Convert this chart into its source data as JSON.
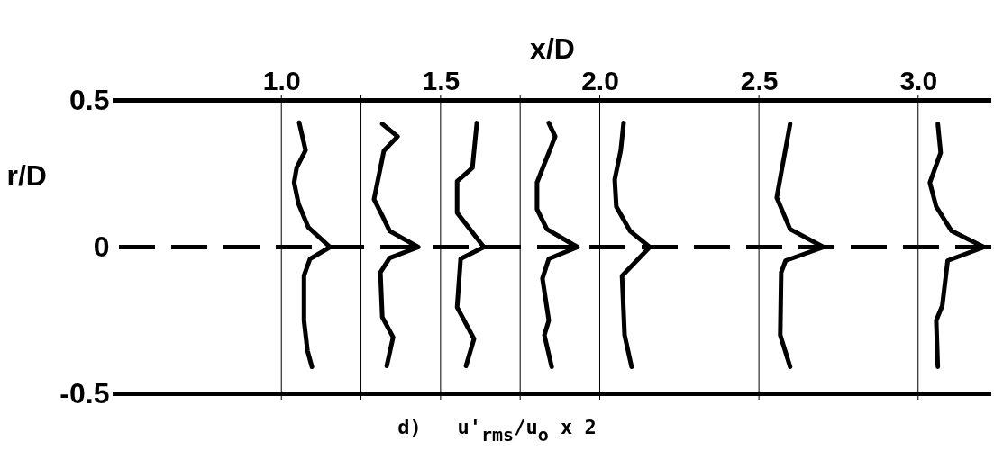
{
  "chart_data": {
    "type": "line",
    "xlabel": "x/D",
    "ylabel": "r/D",
    "annotations": [
      "d)  u'$_{rms}$/u$_{o}$ x 2"
    ],
    "xlim": [
      0.47,
      3.23
    ],
    "ylim": [
      -0.52,
      0.52
    ],
    "xticks": [
      {
        "value": 1,
        "label": "1.0"
      },
      1.5,
      {
        "value": 2,
        "label": "2.0"
      },
      2.5,
      {
        "value": 3,
        "label": "3.0"
      }
    ],
    "yticks": [
      0.5,
      0,
      -0.5
    ],
    "grid": false,
    "legend": false,
    "marker": "none",
    "ref_lines": [
      {
        "axis": "y",
        "value": 0.5,
        "line_style": "solid"
      },
      {
        "axis": "y",
        "value": -0.5,
        "line_style": "solid"
      },
      {
        "axis": "y",
        "value": 0,
        "line_style": "dashed"
      },
      {
        "axis": "x",
        "value": 1.0,
        "line_style": "solid"
      },
      {
        "axis": "x",
        "value": 1.25,
        "line_style": "solid"
      },
      {
        "axis": "x",
        "value": 1.5,
        "line_style": "solid"
      },
      {
        "axis": "x",
        "value": 1.75,
        "line_style": "solid"
      },
      {
        "axis": "x",
        "value": 2.0,
        "line_style": "solid"
      },
      {
        "axis": "x",
        "value": 2.5,
        "line_style": "solid"
      },
      {
        "axis": "x",
        "value": 3.0,
        "line_style": "solid"
      }
    ],
    "series": [
      {
        "color": "#000000",
        "x": [
          1.056,
          1.076,
          1.048,
          1.04,
          1.054,
          1.085,
          1.153,
          1.09,
          1.071,
          1.071,
          1.082,
          1.096
        ],
        "values": [
          0.424,
          0.33,
          0.27,
          0.22,
          0.147,
          0.067,
          0,
          -0.04,
          -0.098,
          -0.25,
          -0.353,
          -0.408
        ]
      },
      {
        "color": "#000000",
        "x": [
          1.317,
          1.365,
          1.322,
          1.291,
          1.317,
          1.34,
          1.43,
          1.34,
          1.311,
          1.317,
          1.351,
          1.331
        ],
        "values": [
          0.42,
          0.377,
          0.328,
          0.163,
          0.107,
          0.055,
          0,
          -0.037,
          -0.086,
          -0.239,
          -0.307,
          -0.405
        ]
      },
      {
        "color": "#000000",
        "x": [
          1.614,
          1.6,
          1.552,
          1.552,
          1.636,
          1.563,
          1.552,
          1.605,
          1.58
        ],
        "values": [
          0.423,
          0.27,
          0.224,
          0.117,
          0,
          -0.04,
          -0.205,
          -0.313,
          -0.405
        ]
      },
      {
        "color": "#000000",
        "x": [
          1.84,
          1.86,
          1.803,
          1.803,
          1.834,
          1.93,
          1.84,
          1.82,
          1.84,
          1.826,
          1.849
        ],
        "values": [
          0.423,
          0.377,
          0.22,
          0.129,
          0.061,
          0,
          -0.04,
          -0.107,
          -0.25,
          -0.3,
          -0.408
        ]
      },
      {
        "color": "#000000",
        "x": [
          2.075,
          2.066,
          2.047,
          2.052,
          2.095,
          2.157,
          2.07,
          2.078,
          2.1
        ],
        "values": [
          0.423,
          0.33,
          0.23,
          0.138,
          0.055,
          0,
          -0.098,
          -0.3,
          -0.408
        ]
      },
      {
        "color": "#000000",
        "x": [
          2.598,
          2.556,
          2.598,
          2.703,
          2.584,
          2.57,
          2.567,
          2.598
        ],
        "values": [
          0.42,
          0.169,
          0.061,
          0,
          -0.046,
          -0.086,
          -0.3,
          -0.408
        ]
      },
      {
        "color": "#000000",
        "x": [
          3.062,
          3.071,
          3.037,
          3.057,
          3.105,
          3.207,
          3.093,
          3.076,
          3.057,
          3.062
        ],
        "values": [
          0.42,
          0.322,
          0.22,
          0.138,
          0.055,
          0,
          -0.046,
          -0.2,
          -0.25,
          -0.408
        ]
      }
    ]
  }
}
